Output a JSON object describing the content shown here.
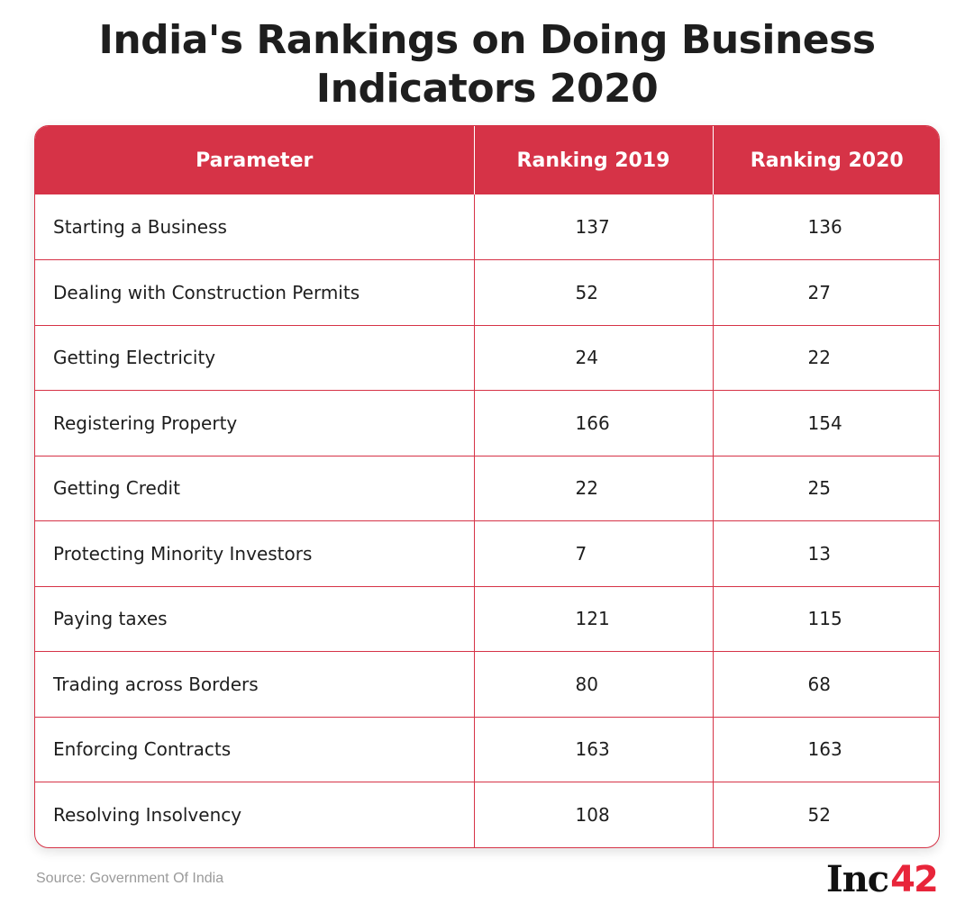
{
  "title": "India's Rankings on Doing Business Indicators 2020",
  "colors": {
    "header_bg": "#d63347",
    "border": "#d63347",
    "logo_accent": "#e8253a"
  },
  "chart_data": {
    "type": "table",
    "title": "India's Rankings on Doing Business Indicators 2020",
    "columns": [
      "Parameter",
      "Ranking 2019",
      "Ranking 2020"
    ],
    "rows": [
      [
        "Starting a Business",
        "137",
        "136"
      ],
      [
        "Dealing with Construction Permits",
        "52",
        "27"
      ],
      [
        "Getting Electricity",
        "24",
        "22"
      ],
      [
        "Registering Property",
        "166",
        "154"
      ],
      [
        "Getting Credit",
        "22",
        "25"
      ],
      [
        "Protecting Minority Investors",
        "7",
        "13"
      ],
      [
        "Paying taxes",
        "121",
        "115"
      ],
      [
        "Trading across Borders",
        "80",
        "68"
      ],
      [
        "Enforcing Contracts",
        "163",
        "163"
      ],
      [
        "Resolving Insolvency",
        "108",
        "52"
      ]
    ]
  },
  "source": "Source: Government Of India",
  "logo": {
    "text": "Inc",
    "number": "42"
  }
}
